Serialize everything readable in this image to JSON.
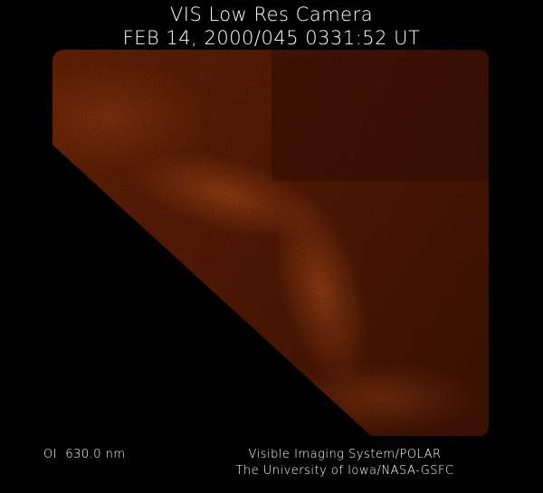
{
  "header": {
    "title": "VIS Low Res Camera",
    "timestamp": "FEB 14, 2000/045 0331:52 UT"
  },
  "footer": {
    "wavelength": "OI  630.0 nm",
    "instrument": "Visible Imaging System/POLAR",
    "institution": "The University of Iowa/NASA-GSFC"
  },
  "image": {
    "subject": "auroral oval emission",
    "colors": {
      "base": "#6a2004",
      "dark": "#3a0f02",
      "bright": "#b84a10",
      "background": "#000000"
    }
  }
}
